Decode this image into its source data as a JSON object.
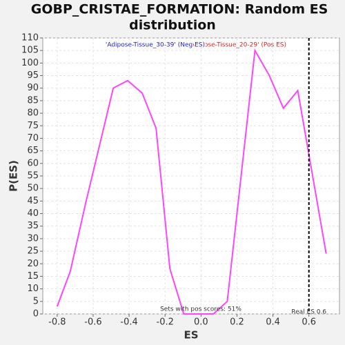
{
  "chart_data": {
    "type": "line",
    "title": [
      "GOBP_CRISTAE_FORMATION: Random ES",
      "distribution"
    ],
    "x_label": "ES",
    "y_label": "P(ES)",
    "series": [
      {
        "name": "P(ES)",
        "color": "#ff44ff",
        "x": [
          -0.8,
          -0.727,
          -0.642,
          -0.488,
          -0.408,
          -0.327,
          -0.25,
          -0.173,
          -0.096,
          -0.012,
          0.069,
          0.146,
          0.3,
          0.38,
          0.458,
          0.538,
          0.696
        ],
        "values": [
          3,
          17,
          44,
          90,
          93,
          88,
          74,
          18,
          0,
          0,
          0,
          5,
          105,
          95,
          82,
          89,
          24
        ]
      }
    ],
    "xlim": [
      -0.88,
      0.77
    ],
    "ylim": [
      0,
      110
    ],
    "xticks": [
      -0.8,
      -0.6,
      -0.4,
      -0.2,
      {
        "value": 0,
        "label": "0.0"
      },
      0.2,
      0.4,
      0.6
    ],
    "yticks": [
      0,
      5,
      10,
      15,
      20,
      25,
      30,
      35,
      40,
      45,
      50,
      55,
      60,
      65,
      70,
      75,
      80,
      85,
      90,
      95,
      100,
      105,
      110
    ],
    "grid": true,
    "neg_label": {
      "text": "'Adipose-Tissue_30-39' (Neg ES)",
      "color": "#2222cc"
    },
    "pos_label": {
      "text": "'Adipose-Tissue_20-29' (Pos ES)",
      "color": "#dd2222"
    },
    "real_es": {
      "value": 0.6,
      "label": "Real ES 0.6"
    },
    "footnote": "Sets with pos scores: 51%"
  }
}
